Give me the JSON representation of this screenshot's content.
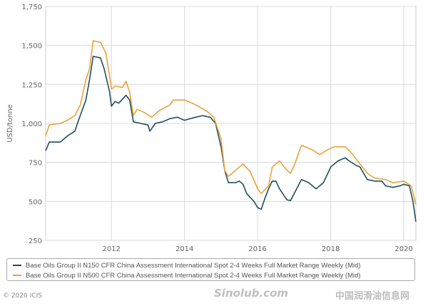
{
  "chart_data": {
    "type": "line",
    "title": "",
    "xlabel": "",
    "ylabel": "USD/tonne",
    "xlim": [
      2010.2,
      2020.33
    ],
    "ylim": [
      250,
      1750
    ],
    "yticks": [
      250,
      500,
      750,
      1000,
      1250,
      1500,
      1750
    ],
    "ytick_labels": [
      "250",
      "500",
      "750",
      "1,000",
      "1,250",
      "1,500",
      "1,750"
    ],
    "xticks": [
      2012,
      2014,
      2016,
      2018,
      2020
    ],
    "xtick_labels": [
      "2012",
      "2014",
      "2016",
      "2018",
      "2020"
    ],
    "grid": true,
    "legend_position": "bottom",
    "series": [
      {
        "name": "Base Oils Group II N150 CFR China Assessment International Spot 2-4 Weeks Full Market Range Weekly (Mid)",
        "color": "#1f4e5f",
        "x": [
          2010.2,
          2010.3,
          2010.6,
          2010.8,
          2011.0,
          2011.1,
          2011.3,
          2011.4,
          2011.5,
          2011.7,
          2011.8,
          2011.95,
          2012.0,
          2012.1,
          2012.2,
          2012.4,
          2012.5,
          2012.6,
          2012.8,
          2013.0,
          2013.05,
          2013.2,
          2013.4,
          2013.6,
          2013.8,
          2014.0,
          2014.3,
          2014.5,
          2014.7,
          2014.85,
          2015.0,
          2015.1,
          2015.2,
          2015.4,
          2015.5,
          2015.6,
          2015.7,
          2015.9,
          2016.0,
          2016.1,
          2016.2,
          2016.3,
          2016.4,
          2016.5,
          2016.6,
          2016.8,
          2016.9,
          2017.0,
          2017.2,
          2017.4,
          2017.6,
          2017.8,
          2018.0,
          2018.2,
          2018.4,
          2018.5,
          2018.7,
          2018.8,
          2019.0,
          2019.2,
          2019.4,
          2019.5,
          2019.7,
          2019.9,
          2020.0,
          2020.15,
          2020.25,
          2020.33
        ],
        "y": [
          825,
          880,
          880,
          920,
          950,
          1020,
          1150,
          1280,
          1430,
          1420,
          1350,
          1200,
          1110,
          1140,
          1130,
          1180,
          1150,
          1010,
          1000,
          990,
          950,
          1000,
          1010,
          1030,
          1040,
          1020,
          1040,
          1050,
          1040,
          1000,
          850,
          700,
          620,
          620,
          630,
          610,
          550,
          500,
          460,
          450,
          520,
          580,
          630,
          630,
          580,
          510,
          505,
          550,
          640,
          620,
          580,
          620,
          720,
          760,
          780,
          760,
          730,
          720,
          640,
          630,
          630,
          600,
          590,
          600,
          610,
          600,
          500,
          370
        ]
      },
      {
        "name": "Base Oils Group II N500 CFR China Assessment International Spot 2-4 Weeks Full Market Range Weekly (Mid)",
        "color": "#e8a33a",
        "x": [
          2010.2,
          2010.3,
          2010.6,
          2010.8,
          2011.0,
          2011.15,
          2011.3,
          2011.4,
          2011.5,
          2011.7,
          2011.85,
          2011.95,
          2012.0,
          2012.1,
          2012.3,
          2012.4,
          2012.5,
          2012.6,
          2012.7,
          2012.9,
          2013.1,
          2013.3,
          2013.6,
          2013.7,
          2014.0,
          2014.3,
          2014.6,
          2014.8,
          2015.0,
          2015.1,
          2015.2,
          2015.4,
          2015.6,
          2015.8,
          2016.0,
          2016.1,
          2016.3,
          2016.4,
          2016.6,
          2016.8,
          2016.9,
          2017.0,
          2017.2,
          2017.5,
          2017.7,
          2017.9,
          2018.1,
          2018.4,
          2018.6,
          2018.8,
          2019.0,
          2019.2,
          2019.5,
          2019.7,
          2020.0,
          2020.2,
          2020.33
        ],
        "y": [
          920,
          990,
          1000,
          1020,
          1050,
          1120,
          1280,
          1350,
          1530,
          1520,
          1450,
          1300,
          1220,
          1240,
          1230,
          1270,
          1200,
          1050,
          1090,
          1070,
          1040,
          1080,
          1120,
          1150,
          1150,
          1120,
          1080,
          1040,
          900,
          700,
          660,
          700,
          740,
          690,
          580,
          550,
          600,
          720,
          760,
          700,
          680,
          730,
          860,
          830,
          800,
          830,
          850,
          850,
          800,
          740,
          680,
          650,
          640,
          620,
          630,
          600,
          480
        ]
      }
    ]
  },
  "copyright": "© 2020 ICIS",
  "watermark": {
    "line1": "Sinolub.com",
    "line2": "中国润滑油信息网"
  }
}
